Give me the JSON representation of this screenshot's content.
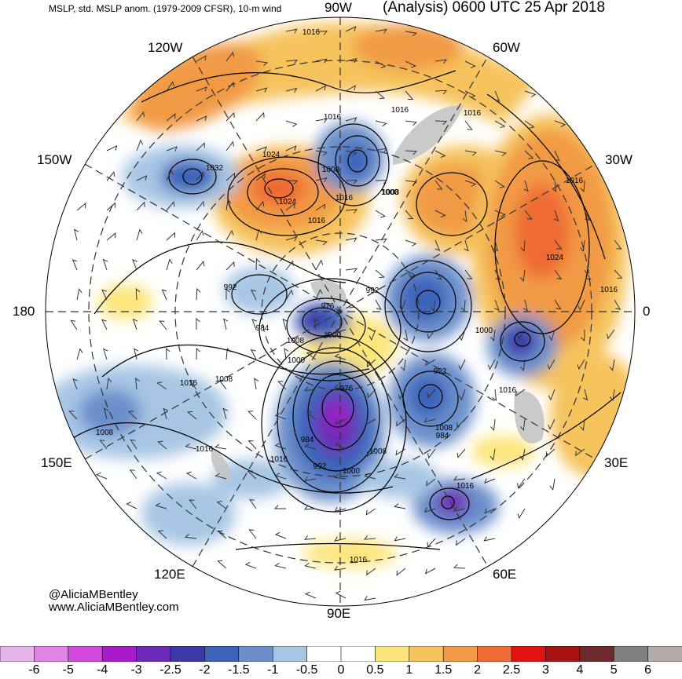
{
  "header": {
    "left": "MSLP, std. MSLP anom. (1979-2009 CFSR), 10-m wind",
    "right": "(Analysis) 0600 UTC 25 Apr 2018"
  },
  "longitude_labels": {
    "n90w": "90W",
    "w120w": "120W",
    "w60w": "60W",
    "w150w": "150W",
    "w30w": "30W",
    "w180": "180",
    "w0": "0",
    "e150e": "150E",
    "e30e": "30E",
    "e120e": "120E",
    "e60e": "60E",
    "s90e": "90E"
  },
  "credits": {
    "handle": "@AliciaMBentley",
    "site": "www.AliciaMBentley.com"
  },
  "isobar_labels": [
    "1016",
    "1016",
    "1016",
    "1016",
    "1024",
    "1008",
    "1032",
    "1024",
    "1016",
    "1000",
    "1008",
    "1016",
    "1024",
    "1016",
    "992",
    "976",
    "992",
    "984",
    "1000",
    "1008",
    "1000",
    "1000",
    "1016",
    "1008",
    "984",
    "992",
    "976",
    "1008",
    "984",
    "992",
    "1000",
    "1016",
    "1008",
    "1016",
    "1008",
    "1016",
    "1016",
    "1016",
    "1016"
  ],
  "colorbar": {
    "colors": [
      "#e6b3ea",
      "#e083e6",
      "#d149dd",
      "#a71bc8",
      "#6e29b8",
      "#3c38a8",
      "#3a63b9",
      "#6b8fcb",
      "#a7c6e4",
      "#ffffff",
      "#ffffff",
      "#fce57a",
      "#f6c35d",
      "#f19a45",
      "#ef6a34",
      "#e21212",
      "#a61212",
      "#6e2a2a",
      "#7f7f7f",
      "#b3a9a9"
    ],
    "ticks": [
      "-6",
      "-5",
      "-4",
      "-3",
      "-2.5",
      "-2",
      "-1.5",
      "-1",
      "-0.5",
      "0",
      "0.5",
      "1",
      "1.5",
      "2",
      "2.5",
      "3",
      "4",
      "5",
      "6"
    ]
  }
}
